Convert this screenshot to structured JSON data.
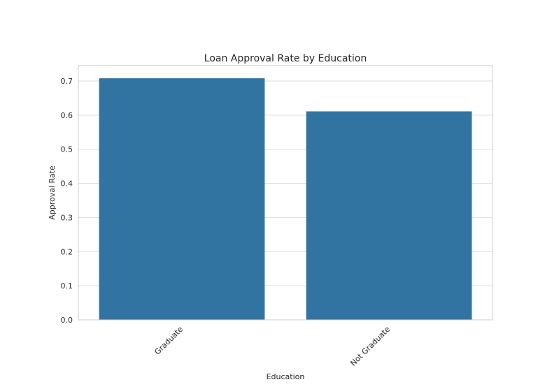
{
  "chart_data": {
    "type": "bar",
    "title": "Loan Approval Rate by Education",
    "xlabel": "Education",
    "ylabel": "Approval Rate",
    "categories": [
      "Graduate",
      "Not Graduate"
    ],
    "values": [
      0.708,
      0.611
    ],
    "ylim": [
      0,
      0.745
    ],
    "yticks": [
      "0.0",
      "0.1",
      "0.2",
      "0.3",
      "0.4",
      "0.5",
      "0.6",
      "0.7"
    ],
    "grid": true,
    "colors": {
      "bar": "#3274a1",
      "grid": "#dddddd",
      "frame": "#cccccc"
    }
  }
}
